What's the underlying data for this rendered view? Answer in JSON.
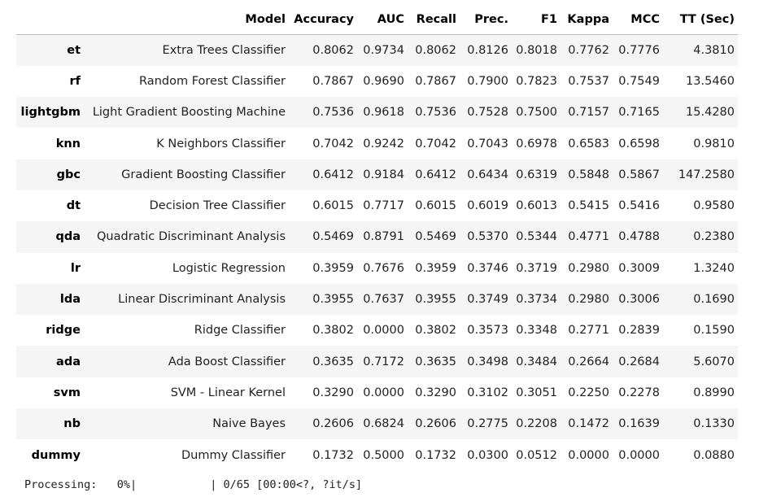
{
  "table": {
    "columns": [
      "",
      "Model",
      "Accuracy",
      "AUC",
      "Recall",
      "Prec.",
      "F1",
      "Kappa",
      "MCC",
      "TT (Sec)"
    ],
    "rows": [
      {
        "id": "et",
        "model": "Extra Trees Classifier",
        "accuracy": "0.8062",
        "auc": "0.9734",
        "recall": "0.8062",
        "prec": "0.8126",
        "f1": "0.8018",
        "kappa": "0.7762",
        "mcc": "0.7776",
        "tt": "4.3810"
      },
      {
        "id": "rf",
        "model": "Random Forest Classifier",
        "accuracy": "0.7867",
        "auc": "0.9690",
        "recall": "0.7867",
        "prec": "0.7900",
        "f1": "0.7823",
        "kappa": "0.7537",
        "mcc": "0.7549",
        "tt": "13.5460"
      },
      {
        "id": "lightgbm",
        "model": "Light Gradient Boosting Machine",
        "accuracy": "0.7536",
        "auc": "0.9618",
        "recall": "0.7536",
        "prec": "0.7528",
        "f1": "0.7500",
        "kappa": "0.7157",
        "mcc": "0.7165",
        "tt": "15.4280"
      },
      {
        "id": "knn",
        "model": "K Neighbors Classifier",
        "accuracy": "0.7042",
        "auc": "0.9242",
        "recall": "0.7042",
        "prec": "0.7043",
        "f1": "0.6978",
        "kappa": "0.6583",
        "mcc": "0.6598",
        "tt": "0.9810"
      },
      {
        "id": "gbc",
        "model": "Gradient Boosting Classifier",
        "accuracy": "0.6412",
        "auc": "0.9184",
        "recall": "0.6412",
        "prec": "0.6434",
        "f1": "0.6319",
        "kappa": "0.5848",
        "mcc": "0.5867",
        "tt": "147.2580"
      },
      {
        "id": "dt",
        "model": "Decision Tree Classifier",
        "accuracy": "0.6015",
        "auc": "0.7717",
        "recall": "0.6015",
        "prec": "0.6019",
        "f1": "0.6013",
        "kappa": "0.5415",
        "mcc": "0.5416",
        "tt": "0.9580"
      },
      {
        "id": "qda",
        "model": "Quadratic Discriminant Analysis",
        "accuracy": "0.5469",
        "auc": "0.8791",
        "recall": "0.5469",
        "prec": "0.5370",
        "f1": "0.5344",
        "kappa": "0.4771",
        "mcc": "0.4788",
        "tt": "0.2380"
      },
      {
        "id": "lr",
        "model": "Logistic Regression",
        "accuracy": "0.3959",
        "auc": "0.7676",
        "recall": "0.3959",
        "prec": "0.3746",
        "f1": "0.3719",
        "kappa": "0.2980",
        "mcc": "0.3009",
        "tt": "1.3240"
      },
      {
        "id": "lda",
        "model": "Linear Discriminant Analysis",
        "accuracy": "0.3955",
        "auc": "0.7637",
        "recall": "0.3955",
        "prec": "0.3749",
        "f1": "0.3734",
        "kappa": "0.2980",
        "mcc": "0.3006",
        "tt": "0.1690"
      },
      {
        "id": "ridge",
        "model": "Ridge Classifier",
        "accuracy": "0.3802",
        "auc": "0.0000",
        "recall": "0.3802",
        "prec": "0.3573",
        "f1": "0.3348",
        "kappa": "0.2771",
        "mcc": "0.2839",
        "tt": "0.1590"
      },
      {
        "id": "ada",
        "model": "Ada Boost Classifier",
        "accuracy": "0.3635",
        "auc": "0.7172",
        "recall": "0.3635",
        "prec": "0.3498",
        "f1": "0.3484",
        "kappa": "0.2664",
        "mcc": "0.2684",
        "tt": "5.6070"
      },
      {
        "id": "svm",
        "model": "SVM - Linear Kernel",
        "accuracy": "0.3290",
        "auc": "0.0000",
        "recall": "0.3290",
        "prec": "0.3102",
        "f1": "0.3051",
        "kappa": "0.2250",
        "mcc": "0.2278",
        "tt": "0.8990"
      },
      {
        "id": "nb",
        "model": "Naive Bayes",
        "accuracy": "0.2606",
        "auc": "0.6824",
        "recall": "0.2606",
        "prec": "0.2775",
        "f1": "0.2208",
        "kappa": "0.1472",
        "mcc": "0.1639",
        "tt": "0.1330"
      },
      {
        "id": "dummy",
        "model": "Dummy Classifier",
        "accuracy": "0.1732",
        "auc": "0.5000",
        "recall": "0.1732",
        "prec": "0.0300",
        "f1": "0.0512",
        "kappa": "0.0000",
        "mcc": "0.0000",
        "tt": "0.0880"
      }
    ]
  },
  "progress": {
    "label": "Processing:",
    "percent_text": "0%|",
    "status": "| 0/65 [00:00<?, ?it/s]",
    "fraction": 0
  },
  "colors": {
    "stripe": "#f5f5f5",
    "header_rule": "#bdbdbd",
    "progress_fill": "#3c8dbc"
  }
}
